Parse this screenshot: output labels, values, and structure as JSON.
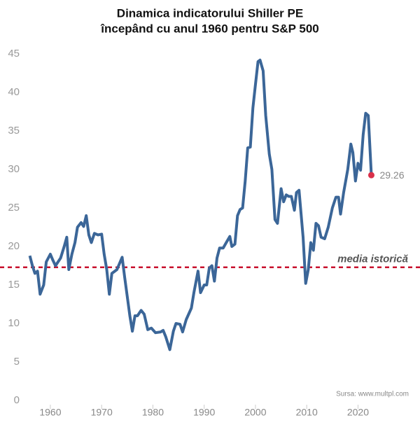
{
  "chart_data": {
    "type": "line",
    "title": [
      "Dinamica indicatorului Shiller PE",
      "începând cu anul 1960 pentru S&P 500"
    ],
    "source": "Sursa: www.multpl.com",
    "color": "#3b6698",
    "end_color": "#d9304a",
    "x": [
      1956,
      1956.5,
      1957,
      1957.5,
      1958,
      1958.7,
      1959.2,
      1960,
      1960.5,
      1961,
      1962,
      1962.7,
      1963.2,
      1963.6,
      1964.2,
      1964.8,
      1965.3,
      1966,
      1966.5,
      1967,
      1967.5,
      1968,
      1968.6,
      1969.3,
      1970,
      1970.5,
      1971,
      1971.5,
      1972,
      1973,
      1974,
      1974.5,
      1975,
      1975.5,
      1976,
      1976.5,
      1977,
      1977.7,
      1978.3,
      1979,
      1979.7,
      1980.5,
      1981.5,
      1982,
      1982.5,
      1983.3,
      1984,
      1984.5,
      1985.3,
      1985.8,
      1986.5,
      1987.5,
      1988,
      1988.8,
      1989.3,
      1990,
      1990.5,
      1991,
      1991.5,
      1992,
      1992.5,
      1993,
      1993.7,
      1994.3,
      1995,
      1995.4,
      1996,
      1996.5,
      1997,
      1997.5,
      1998,
      1998.5,
      1999,
      1999.5,
      2000,
      2000.5,
      2000.9,
      2001.5,
      2002,
      2002.7,
      2003.2,
      2003.8,
      2004.3,
      2005,
      2005.5,
      2006,
      2006.5,
      2007,
      2007.6,
      2008,
      2008.5,
      2009.3,
      2009.8,
      2010.3,
      2010.8,
      2011.3,
      2011.8,
      2012.3,
      2012.8,
      2013.5,
      2014.2,
      2015,
      2015.7,
      2016.2,
      2016.6,
      2017.2,
      2018,
      2018.6,
      2019,
      2019.5,
      2020,
      2020.5,
      2021,
      2021.5,
      2022,
      2022.6
    ],
    "values": [
      18.8,
      17.5,
      16.5,
      16.8,
      13.8,
      15,
      18,
      19,
      18.2,
      17.5,
      18.5,
      20,
      21.2,
      17,
      19,
      20.5,
      22.5,
      23.1,
      22.6,
      24,
      21.5,
      20.5,
      21.7,
      21.5,
      21.6,
      19,
      17,
      13.8,
      16.5,
      17,
      18.6,
      16,
      13.5,
      11,
      9,
      11,
      11,
      11.7,
      11.2,
      9.2,
      9.4,
      8.8,
      8.9,
      9.1,
      8.3,
      6.6,
      9,
      10,
      9.9,
      8.9,
      10.5,
      12,
      14,
      16.8,
      14,
      15,
      15,
      17.2,
      17.5,
      15.5,
      18.5,
      19.8,
      19.8,
      20.5,
      21.3,
      20,
      20.3,
      24,
      24.8,
      25,
      28.5,
      32.8,
      32.9,
      38,
      41,
      44,
      44.2,
      42.8,
      37,
      32,
      30,
      23.5,
      23,
      27.5,
      25.8,
      26.7,
      26.5,
      26.5,
      24.7,
      27,
      27.3,
      21.2,
      15.2,
      17,
      20.5,
      19.5,
      23,
      22.7,
      21.2,
      21,
      22.5,
      25,
      26.4,
      26.4,
      24.2,
      27,
      30,
      33.3,
      32.2,
      28.5,
      30.8,
      29.9,
      34.5,
      37.3,
      37,
      29.26
    ],
    "reference_line": {
      "value": 17.3,
      "label": "media istorică",
      "color": "#c8102e"
    },
    "xlim": [
      1955,
      2031
    ],
    "xticks": [
      1960,
      1970,
      1980,
      1990,
      2000,
      2010,
      2020
    ],
    "ylim": [
      0,
      45
    ],
    "yticks": [
      0,
      5,
      10,
      15,
      20,
      25,
      30,
      35,
      40,
      45
    ],
    "grid": false
  }
}
